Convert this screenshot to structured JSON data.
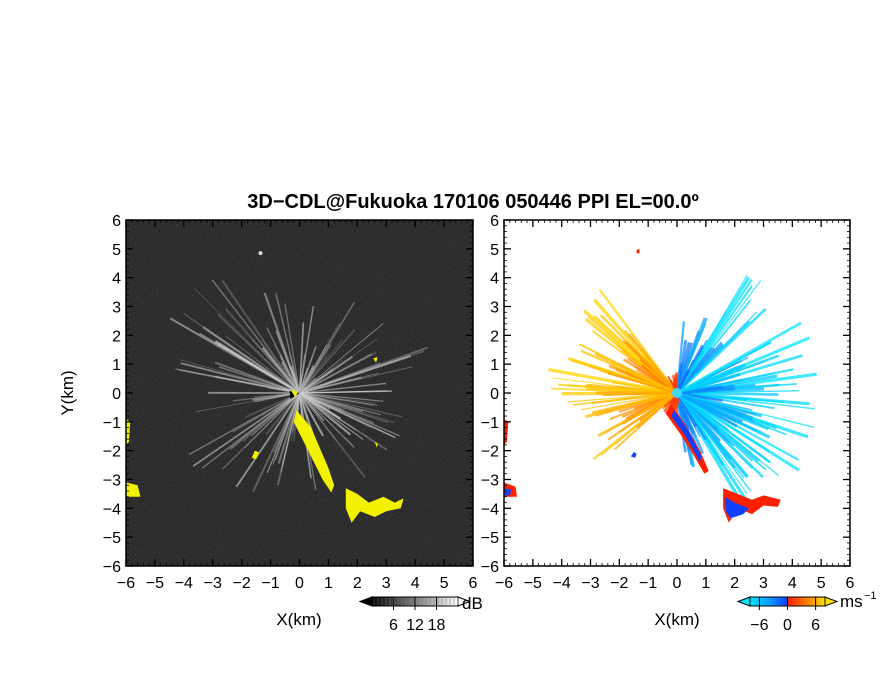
{
  "chart_data": {
    "type": "heatmap",
    "title": "3D−CDL@Fukuoka 170106 050446 PPI EL=00.0º",
    "panels": [
      {
        "id": "reflectivity",
        "xlabel": "X(km)",
        "ylabel": "Y(km)",
        "xlim": [
          -6,
          6
        ],
        "ylim": [
          -6,
          6
        ],
        "x_ticks": [
          "−6",
          "−5",
          "−4",
          "−3",
          "−2",
          "−1",
          "0",
          "1",
          "2",
          "3",
          "4",
          "5",
          "6"
        ],
        "y_ticks": [
          "6",
          "5",
          "4",
          "3",
          "2",
          "1",
          "0",
          "−1",
          "−2",
          "−3",
          "−4",
          "−5",
          "−6"
        ],
        "colorbar": {
          "unit": "dB",
          "ticks": [
            "6",
            "12",
            "18"
          ],
          "range": [
            0,
            24
          ]
        },
        "background_color": "#1b1b1b",
        "highlight_color": "#f2f200",
        "radar_center": [
          0,
          0
        ]
      },
      {
        "id": "doppler-velocity",
        "xlabel": "X(km)",
        "ylabel": "",
        "xlim": [
          -6,
          6
        ],
        "ylim": [
          -6,
          6
        ],
        "x_ticks": [
          "−6",
          "−5",
          "−4",
          "−3",
          "−2",
          "−1",
          "0",
          "1",
          "2",
          "3",
          "4",
          "5",
          "6"
        ],
        "y_ticks": [
          "6",
          "5",
          "4",
          "3",
          "2",
          "1",
          "0",
          "−1",
          "−2",
          "−3",
          "−4",
          "−5",
          "−6"
        ],
        "colorbar": {
          "unit": "ms",
          "unit_exponent": "−1",
          "ticks": [
            "−6",
            "0",
            "6"
          ],
          "range": [
            -8,
            8
          ]
        },
        "colors": {
          "approaching_low": "#00e5ff",
          "approaching_high": "#1040ff",
          "receding_low": "#ff2000",
          "receding_high": "#ffe000"
        },
        "radar_center": [
          0,
          0
        ]
      }
    ]
  }
}
